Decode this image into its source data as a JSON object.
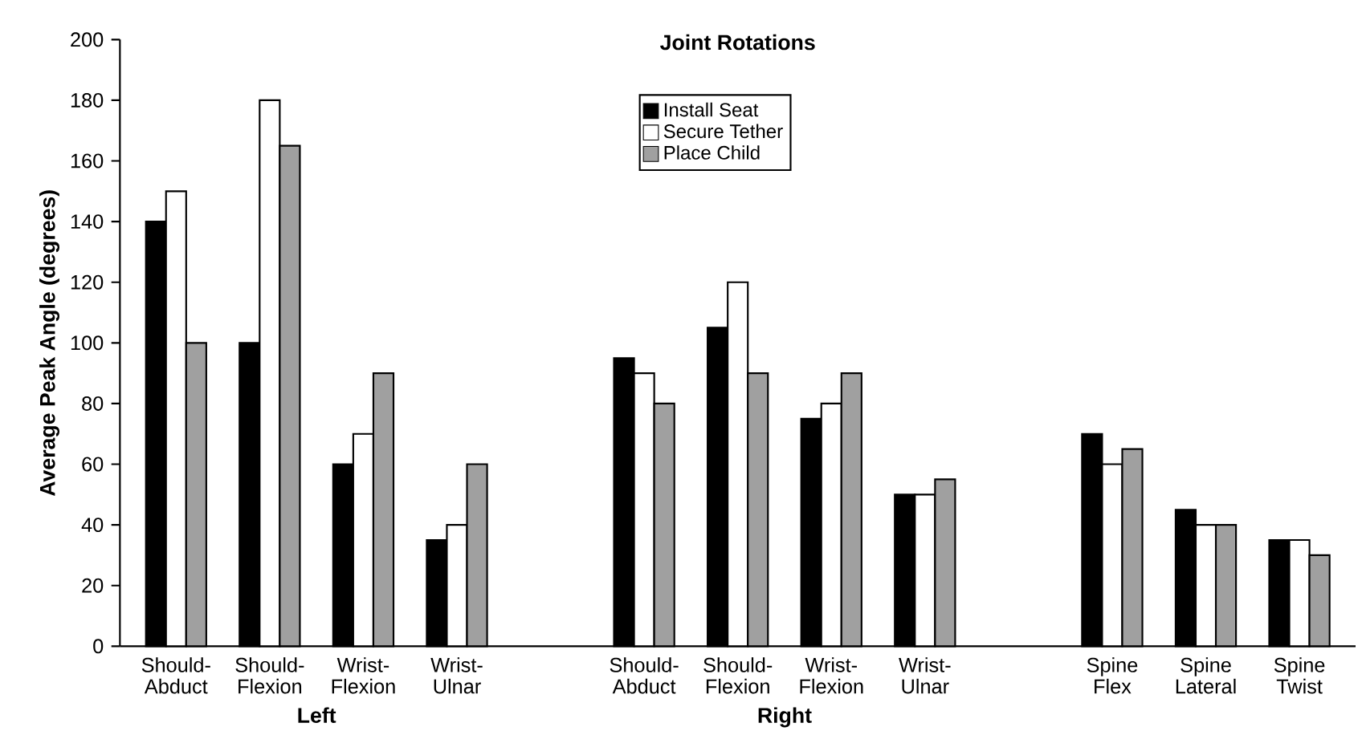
{
  "chart_data": {
    "type": "bar",
    "title": "Joint Rotations",
    "ylabel": "Average Peak Angle (degrees)",
    "categories": [
      "Should- Abduct",
      "Should- Flexion",
      "Wrist- Flexion",
      "Wrist- Ulnar",
      null,
      "Should- Abduct",
      "Should- Flexion",
      "Wrist- Flexion",
      "Wrist- Ulnar",
      null,
      "Spine Flex",
      "Spine Lateral",
      "Spine Twist"
    ],
    "series": [
      {
        "name": "Install Seat",
        "color": "#000000",
        "values": [
          140,
          100,
          60,
          35,
          null,
          95,
          105,
          75,
          50,
          null,
          70,
          45,
          35
        ]
      },
      {
        "name": "Secure Tether",
        "color": "#ffffff",
        "values": [
          150,
          180,
          70,
          40,
          null,
          90,
          120,
          80,
          50,
          null,
          60,
          40,
          35
        ]
      },
      {
        "name": "Place Child",
        "color": "#a0a0a0",
        "values": [
          100,
          165,
          90,
          60,
          null,
          80,
          90,
          90,
          55,
          null,
          65,
          40,
          30
        ]
      }
    ],
    "annotations": [
      "Left",
      "Right"
    ],
    "ylim": [
      0,
      200
    ],
    "yticks": [
      0,
      20,
      40,
      60,
      80,
      100,
      120,
      140,
      160,
      180,
      200
    ],
    "grid": false,
    "legend": "top"
  }
}
